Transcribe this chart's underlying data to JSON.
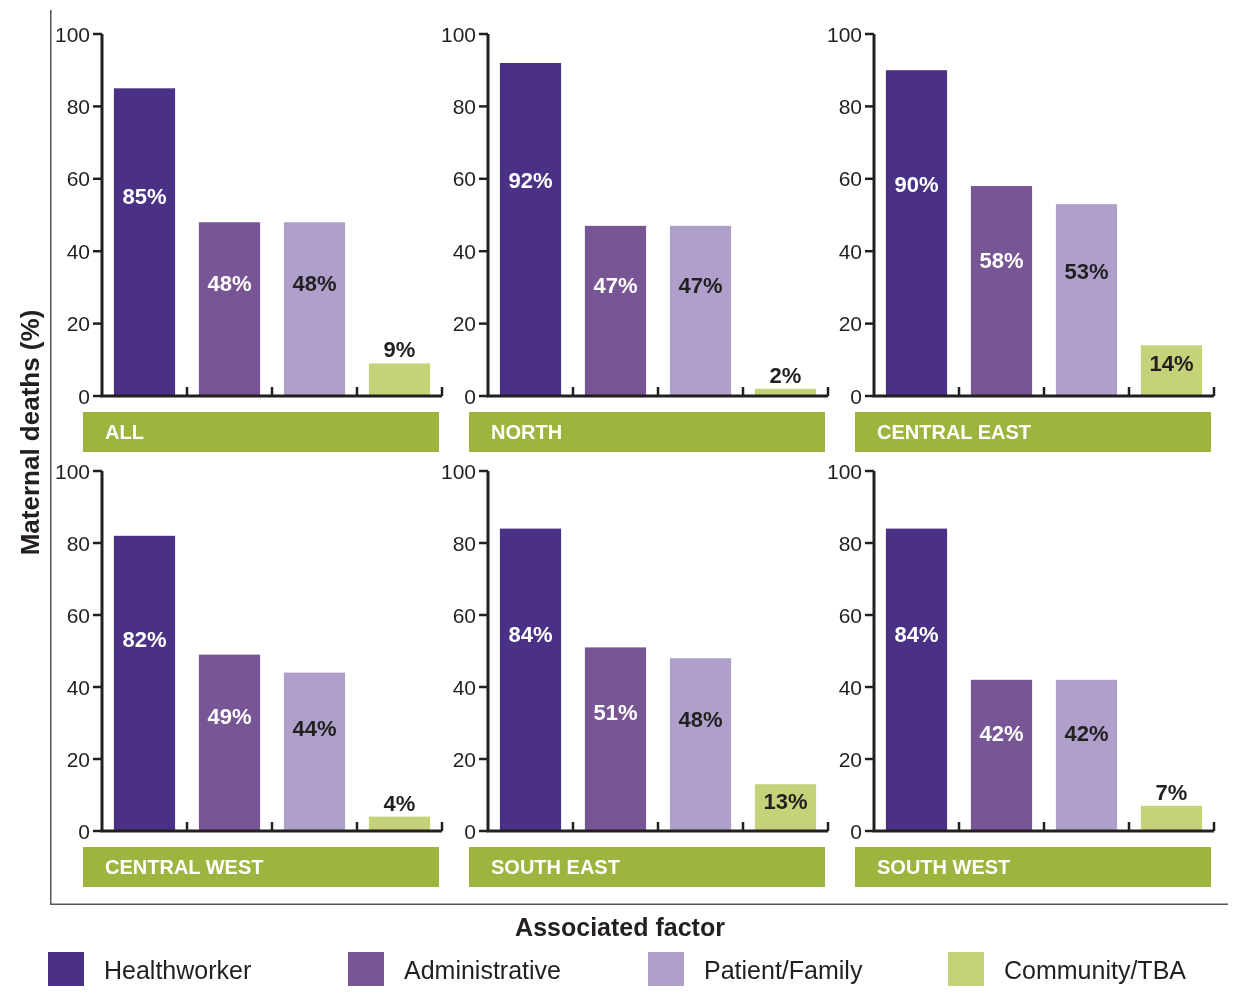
{
  "chart_data": [
    {
      "type": "bar",
      "title": "ALL",
      "ylabel": "Maternal deaths (%)",
      "xlabel": "Associated factor",
      "legend": "bottom",
      "stacked": true,
      "categories": [
        null,
        null,
        null,
        null
      ],
      "ylim": [
        0,
        100
      ],
      "yticks": [
        0,
        20,
        40,
        60,
        80,
        100
      ],
      "series": [
        {
          "name": "Healthworker",
          "color": "#4a3185",
          "values": [
            85,
            null,
            null,
            null
          ],
          "value_labels": [
            "85%",
            null,
            null,
            null
          ]
        },
        {
          "name": "Administrative",
          "color": "#785595",
          "values": [
            null,
            48,
            null,
            null
          ],
          "value_labels": [
            null,
            "48%",
            null,
            null
          ]
        },
        {
          "name": "Patient/Family",
          "color": "#afa0cb",
          "values": [
            null,
            null,
            48,
            null
          ],
          "value_labels": [
            null,
            null,
            "48%",
            null
          ]
        },
        {
          "name": "Community/TBA",
          "color": "#c5d27a",
          "values": [
            null,
            null,
            null,
            9
          ],
          "value_labels": [
            null,
            null,
            null,
            "9%"
          ]
        }
      ]
    },
    {
      "type": "bar",
      "title": "NORTH",
      "stacked": true,
      "categories": [
        null,
        null,
        null,
        null
      ],
      "ylim": [
        0,
        100
      ],
      "yticks": [
        0,
        20,
        40,
        60,
        80,
        100
      ],
      "series": [
        {
          "name": "Healthworker",
          "color": "#4a3185",
          "values": [
            92,
            null,
            null,
            null
          ],
          "value_labels": [
            "92%",
            null,
            null,
            null
          ]
        },
        {
          "name": "Administrative",
          "color": "#785595",
          "values": [
            null,
            47,
            null,
            null
          ],
          "value_labels": [
            null,
            "47%",
            null,
            null
          ]
        },
        {
          "name": "Patient/Family",
          "color": "#afa0cb",
          "values": [
            null,
            null,
            47,
            null
          ],
          "value_labels": [
            null,
            null,
            "47%",
            null
          ]
        },
        {
          "name": "Community/TBA",
          "color": "#c5d27a",
          "values": [
            null,
            null,
            null,
            2
          ],
          "value_labels": [
            null,
            null,
            null,
            "2%"
          ]
        }
      ]
    },
    {
      "type": "bar",
      "title": "CENTRAL EAST",
      "stacked": true,
      "categories": [
        null,
        null,
        null,
        null
      ],
      "ylim": [
        0,
        100
      ],
      "yticks": [
        0,
        20,
        40,
        60,
        80,
        100
      ],
      "series": [
        {
          "name": "Healthworker",
          "color": "#4a3185",
          "values": [
            90,
            null,
            null,
            null
          ],
          "value_labels": [
            "90%",
            null,
            null,
            null
          ]
        },
        {
          "name": "Administrative",
          "color": "#785595",
          "values": [
            null,
            58,
            null,
            null
          ],
          "value_labels": [
            null,
            "58%",
            null,
            null
          ]
        },
        {
          "name": "Patient/Family",
          "color": "#afa0cb",
          "values": [
            null,
            null,
            53,
            null
          ],
          "value_labels": [
            null,
            null,
            "53%",
            null
          ]
        },
        {
          "name": "Community/TBA",
          "color": "#c5d27a",
          "values": [
            null,
            null,
            null,
            14
          ],
          "value_labels": [
            null,
            null,
            null,
            "14%"
          ]
        }
      ]
    },
    {
      "type": "bar",
      "title": "CENTRAL WEST",
      "stacked": true,
      "categories": [
        null,
        null,
        null,
        null
      ],
      "ylim": [
        0,
        100
      ],
      "yticks": [
        0,
        20,
        40,
        60,
        80,
        100
      ],
      "series": [
        {
          "name": "Healthworker",
          "color": "#4a3185",
          "values": [
            82,
            null,
            null,
            null
          ],
          "value_labels": [
            "82%",
            null,
            null,
            null
          ]
        },
        {
          "name": "Administrative",
          "color": "#785595",
          "values": [
            null,
            49,
            null,
            null
          ],
          "value_labels": [
            null,
            "49%",
            null,
            null
          ]
        },
        {
          "name": "Patient/Family",
          "color": "#afa0cb",
          "values": [
            null,
            null,
            44,
            null
          ],
          "value_labels": [
            null,
            null,
            "44%",
            null
          ]
        },
        {
          "name": "Community/TBA",
          "color": "#c5d27a",
          "values": [
            null,
            null,
            null,
            4
          ],
          "value_labels": [
            null,
            null,
            null,
            "4%"
          ]
        }
      ]
    },
    {
      "type": "bar",
      "title": "SOUTH EAST",
      "stacked": true,
      "categories": [
        null,
        null,
        null,
        null
      ],
      "ylim": [
        0,
        100
      ],
      "yticks": [
        0,
        20,
        40,
        60,
        80,
        100
      ],
      "series": [
        {
          "name": "Healthworker",
          "color": "#4a3185",
          "values": [
            84,
            null,
            null,
            null
          ],
          "value_labels": [
            "84%",
            null,
            null,
            null
          ]
        },
        {
          "name": "Administrative",
          "color": "#785595",
          "values": [
            null,
            51,
            null,
            null
          ],
          "value_labels": [
            null,
            "51%",
            null,
            null
          ]
        },
        {
          "name": "Patient/Family",
          "color": "#afa0cb",
          "values": [
            null,
            null,
            48,
            null
          ],
          "value_labels": [
            null,
            null,
            "48%",
            null
          ]
        },
        {
          "name": "Community/TBA",
          "color": "#c5d27a",
          "values": [
            null,
            null,
            null,
            13
          ],
          "value_labels": [
            null,
            null,
            null,
            "13%"
          ]
        }
      ]
    },
    {
      "type": "bar",
      "title": "SOUTH WEST",
      "stacked": true,
      "categories": [
        null,
        null,
        null,
        null
      ],
      "ylim": [
        0,
        100
      ],
      "yticks": [
        0,
        20,
        40,
        60,
        80,
        100
      ],
      "series": [
        {
          "name": "Healthworker",
          "color": "#4a3185",
          "values": [
            84,
            null,
            null,
            null
          ],
          "value_labels": [
            "84%",
            null,
            null,
            null
          ]
        },
        {
          "name": "Administrative",
          "color": "#785595",
          "values": [
            null,
            42,
            null,
            null
          ],
          "value_labels": [
            null,
            "42%",
            null,
            null
          ]
        },
        {
          "name": "Patient/Family",
          "color": "#afa0cb",
          "values": [
            null,
            null,
            42,
            null
          ],
          "value_labels": [
            null,
            null,
            "42%",
            null
          ]
        },
        {
          "name": "Community/TBA",
          "color": "#c5d27a",
          "values": [
            null,
            null,
            null,
            7
          ],
          "value_labels": [
            null,
            null,
            null,
            "7%"
          ]
        }
      ]
    }
  ]
}
